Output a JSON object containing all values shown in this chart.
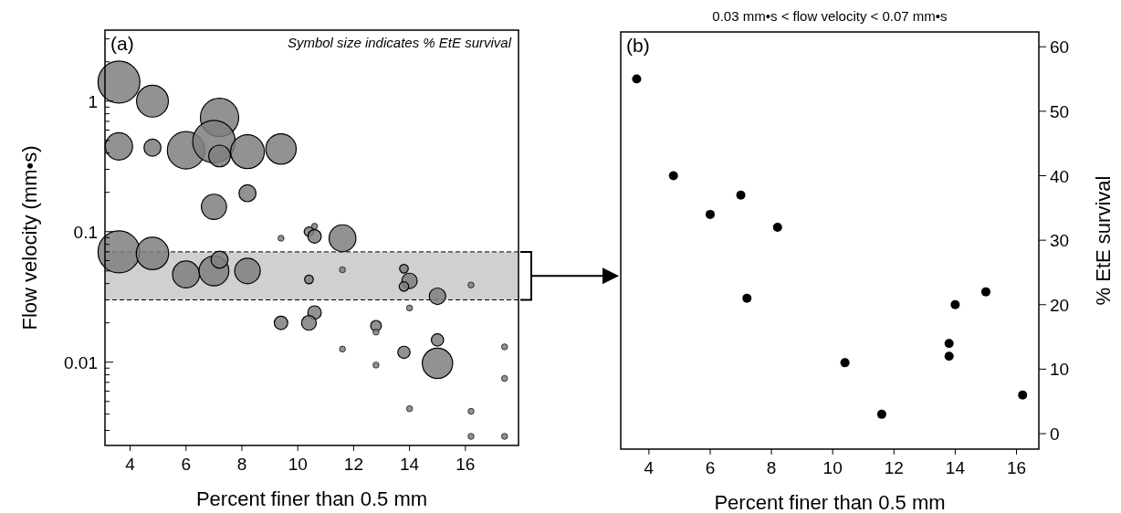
{
  "chart_data": [
    {
      "type": "bubble",
      "ylabel": "Flow velocity (mm•s)",
      "xlabel": "Percent finer than 0.5 mm",
      "log": "y",
      "xlim": [
        3.1,
        17.9
      ],
      "xticks": [
        4,
        6,
        8,
        10,
        12,
        14,
        16
      ],
      "ylim": [
        0.0023,
        3.5
      ],
      "yticks": [
        {
          "value": 0.003,
          "label": null
        },
        {
          "value": 0.004,
          "label": null
        },
        {
          "value": 0.005,
          "label": null
        },
        {
          "value": 0.006,
          "label": null
        },
        {
          "value": 0.007,
          "label": null
        },
        {
          "value": 0.008,
          "label": null
        },
        {
          "value": 0.009,
          "label": null
        },
        0.01,
        {
          "value": 0.02,
          "label": null
        },
        {
          "value": 0.03,
          "label": null
        },
        {
          "value": 0.04,
          "label": null
        },
        {
          "value": 0.05,
          "label": null
        },
        {
          "value": 0.06,
          "label": null
        },
        {
          "value": 0.07,
          "label": null
        },
        {
          "value": 0.08,
          "label": null
        },
        {
          "value": 0.09,
          "label": null
        },
        0.1,
        {
          "value": 0.2,
          "label": null
        },
        {
          "value": 0.3,
          "label": null
        },
        {
          "value": 0.4,
          "label": null
        },
        {
          "value": 0.5,
          "label": null
        },
        {
          "value": 0.6,
          "label": null
        },
        {
          "value": 0.7,
          "label": null
        },
        {
          "value": 0.8,
          "label": null
        },
        {
          "value": 0.9,
          "label": null
        },
        1,
        {
          "value": 2,
          "label": null
        },
        {
          "value": 3,
          "label": null
        }
      ],
      "bands": [
        {
          "axis": "y",
          "from": 0.03,
          "to": 0.07,
          "color": "#d0d0d0"
        }
      ],
      "ref_lines": [
        {
          "axis": "y",
          "value": 0.03,
          "line_style": "dashed",
          "color": "#000000"
        },
        {
          "axis": "y",
          "value": 0.07,
          "line_style": "dashed",
          "color": "#000000"
        }
      ],
      "annotations": [
        "(a)",
        "Symbol size indicates % EtE survival"
      ],
      "series": [
        {
          "color": "#7f7f7f",
          "x": [
            3.6,
            4.8,
            7.2,
            3.6,
            4.8,
            6.0,
            7.0,
            7.2,
            8.2,
            9.4,
            7.0,
            8.2,
            3.6,
            4.8,
            6.0,
            7.0,
            7.2,
            8.2,
            9.4,
            10.4,
            10.6,
            10.6,
            11.6,
            11.6,
            10.4,
            13.8,
            14.0,
            13.8,
            15.0,
            16.2,
            14.0,
            10.6,
            9.4,
            10.4,
            12.8,
            12.8,
            11.6,
            13.8,
            15.0,
            15.0,
            12.8,
            17.4,
            17.4,
            14.0,
            16.2,
            16.2,
            17.4
          ],
          "values": [
            1.4,
            1.0,
            0.75,
            0.45,
            0.44,
            0.42,
            0.49,
            0.38,
            0.41,
            0.43,
            0.155,
            0.197,
            0.07,
            0.068,
            0.047,
            0.05,
            0.061,
            0.05,
            0.089,
            0.1,
            0.11,
            0.092,
            0.089,
            0.051,
            0.043,
            0.052,
            0.042,
            0.038,
            0.032,
            0.039,
            0.026,
            0.024,
            0.02,
            0.02,
            0.019,
            0.017,
            0.0126,
            0.0119,
            0.0148,
            0.0098,
            0.0095,
            0.0131,
            0.0075,
            0.0044,
            0.0042,
            0.0027,
            0.0027
          ],
          "sizes": [
            0.97,
            0.56,
            0.81,
            0.41,
            0.16,
            0.77,
            1,
            0.26,
            0.63,
            0.51,
            0.35,
            0.16,
            0.97,
            0.58,
            0.4,
            0.49,
            0.16,
            0.36,
            0.02,
            0.05,
            0.02,
            0.1,
            0.4,
            0.02,
            0.042,
            0.042,
            0.13,
            0.05,
            0.15,
            0.02,
            0.02,
            0.1,
            0.1,
            0.12,
            0.064,
            0.02,
            0.02,
            0.083,
            0.083,
            0.51,
            0.02,
            0.02,
            0.02,
            0.02,
            0.02,
            0.02,
            0.02
          ]
        }
      ]
    },
    {
      "type": "scatter",
      "title": "0.03 mm•s < flow velocity < 0.07 mm•s",
      "xlabel": "Percent finer than 0.5 mm",
      "y2label": "% EtE survival",
      "xlim": [
        3.08,
        16.73
      ],
      "xticks": [
        4,
        6,
        8,
        10,
        12,
        14,
        16
      ],
      "y2lim": [
        -2.4,
        62.3
      ],
      "y2ticks": [
        0,
        10,
        20,
        30,
        40,
        50,
        60
      ],
      "annotations": [
        "(b)"
      ],
      "series": [
        {
          "color": "#000000",
          "axis": "y2",
          "x": [
            3.6,
            4.8,
            6,
            7,
            8.2,
            7.2,
            10.4,
            11.6,
            13.8,
            13.8,
            14,
            15,
            16.2
          ],
          "values": [
            55,
            40,
            34,
            37,
            32,
            21,
            11,
            3,
            14,
            12,
            20,
            22,
            6
          ]
        }
      ]
    }
  ]
}
